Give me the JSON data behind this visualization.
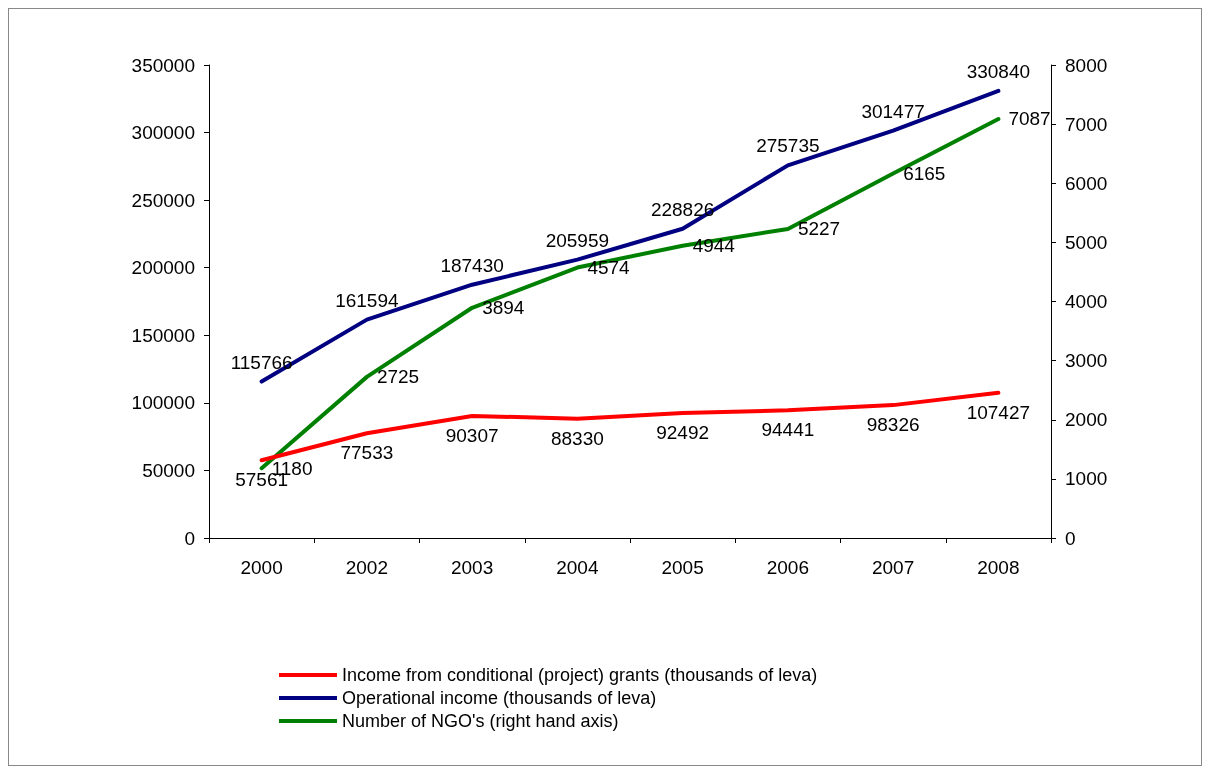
{
  "chart_data": {
    "type": "line",
    "categories": [
      "2000",
      "2002",
      "2003",
      "2004",
      "2005",
      "2006",
      "2007",
      "2008"
    ],
    "series": [
      {
        "name": "Income from conditional (project) grants (thousands of leva)",
        "color": "#ff0000",
        "values": [
          57561,
          77533,
          90307,
          88330,
          92492,
          94441,
          98326,
          107427
        ]
      },
      {
        "name": "Operational income (thousands of leva)",
        "color": "#000080",
        "values": [
          115766,
          161594,
          187430,
          205959,
          228826,
          275735,
          301477,
          330840
        ]
      },
      {
        "name": "Number of NGO's (right hand axis)",
        "color": "#008000",
        "axis": "y2",
        "values": [
          1180,
          2725,
          3894,
          4574,
          4944,
          5227,
          6165,
          7087
        ]
      }
    ],
    "ylim": [
      0,
      350000
    ],
    "yticks": [
      0,
      50000,
      100000,
      150000,
      200000,
      250000,
      300000,
      350000
    ],
    "y2lim": [
      0,
      8000
    ],
    "y2ticks": [
      0,
      1000,
      2000,
      3000,
      4000,
      5000,
      6000,
      7000,
      8000
    ],
    "data_labels": true,
    "legend": "bottom",
    "grid": false,
    "marker": "none",
    "line_style": "solid"
  }
}
